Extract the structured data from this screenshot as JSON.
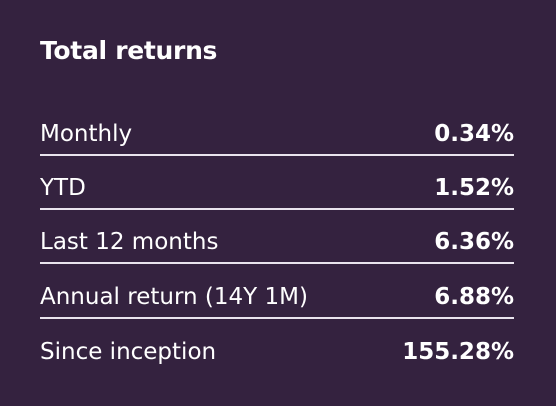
{
  "header": {
    "title": "Total returns"
  },
  "table": {
    "rows": [
      [
        "Monthly",
        "0.34%"
      ],
      [
        "YTD",
        "1.52%"
      ],
      [
        "Last 12 months",
        "6.36%"
      ],
      [
        "Annual return (14Y 1M)",
        "6.88%"
      ],
      [
        "Since inception",
        "155.28%"
      ]
    ]
  }
}
